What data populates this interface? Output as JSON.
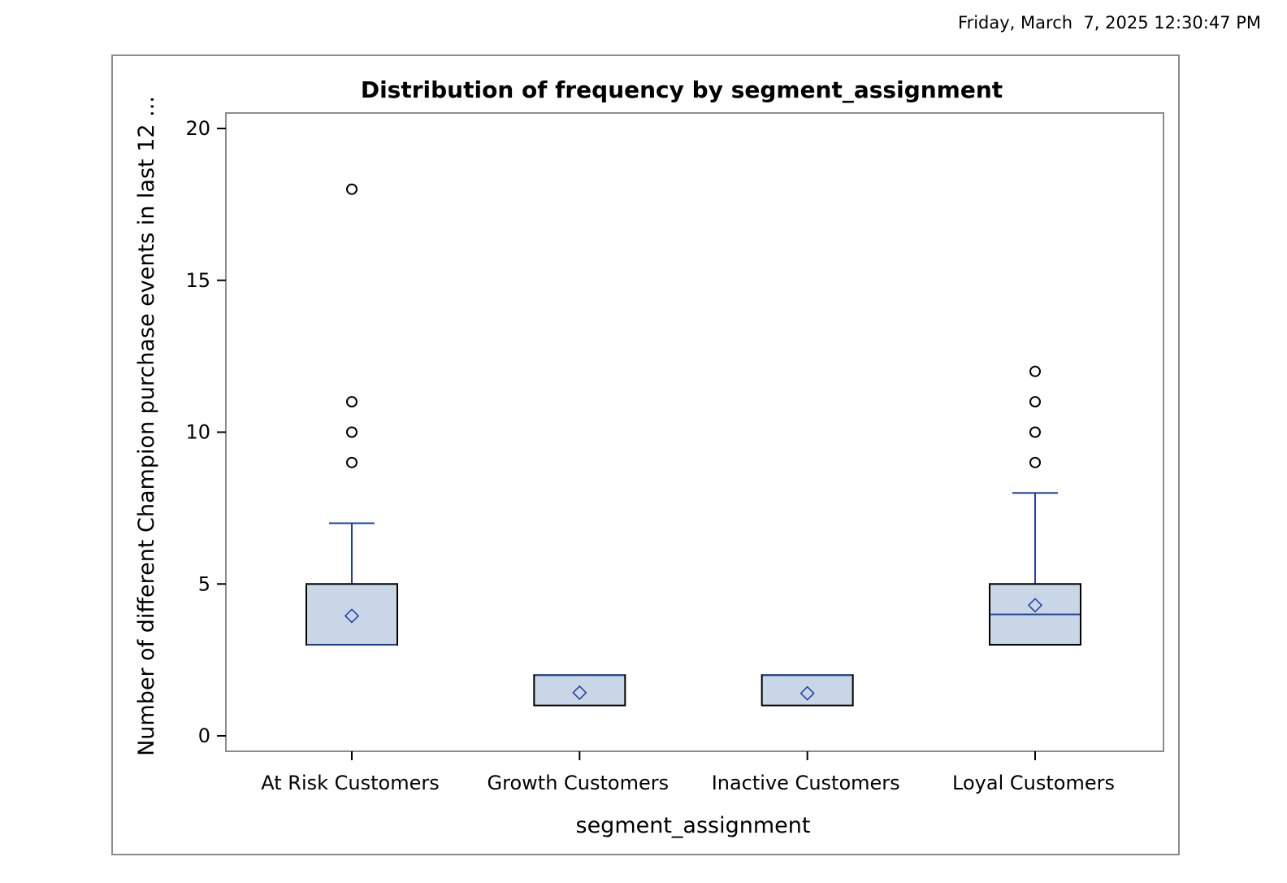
{
  "header": {
    "timestamp": "Friday, March  7, 2025 12:30:47 PM"
  },
  "colors": {
    "box_fill": "#c9d6e6",
    "box_stroke": "#000000",
    "whisker": "#1f3f9f",
    "frame": "#8c8c8c"
  },
  "chart_data": {
    "type": "box",
    "title": "Distribution of frequency by segment_assignment",
    "xlabel": "segment_assignment",
    "ylabel": "Number of different Champion purchase events in last 12 ...",
    "ylim": [
      0,
      20
    ],
    "yticks": [
      0,
      5,
      10,
      15,
      20
    ],
    "categories": [
      "At Risk Customers",
      "Growth Customers",
      "Inactive Customers",
      "Loyal Customers"
    ],
    "boxes": [
      {
        "category": "At Risk Customers",
        "q1": 3,
        "median": 3,
        "q3": 5,
        "mean": 3.95,
        "whisker_low": 3,
        "whisker_high": 7,
        "outliers": [
          9,
          10,
          11,
          18
        ]
      },
      {
        "category": "Growth Customers",
        "q1": 1,
        "median": 2,
        "q3": 2,
        "mean": 1.42,
        "whisker_low": 1,
        "whisker_high": 2,
        "outliers": []
      },
      {
        "category": "Inactive Customers",
        "q1": 1,
        "median": 2,
        "q3": 2,
        "mean": 1.4,
        "whisker_low": 1,
        "whisker_high": 2,
        "outliers": []
      },
      {
        "category": "Loyal Customers",
        "q1": 3,
        "median": 4,
        "q3": 5,
        "mean": 4.3,
        "whisker_low": 3,
        "whisker_high": 8,
        "outliers": [
          9,
          10,
          11,
          12
        ]
      }
    ],
    "grid": false,
    "legend": "none"
  }
}
